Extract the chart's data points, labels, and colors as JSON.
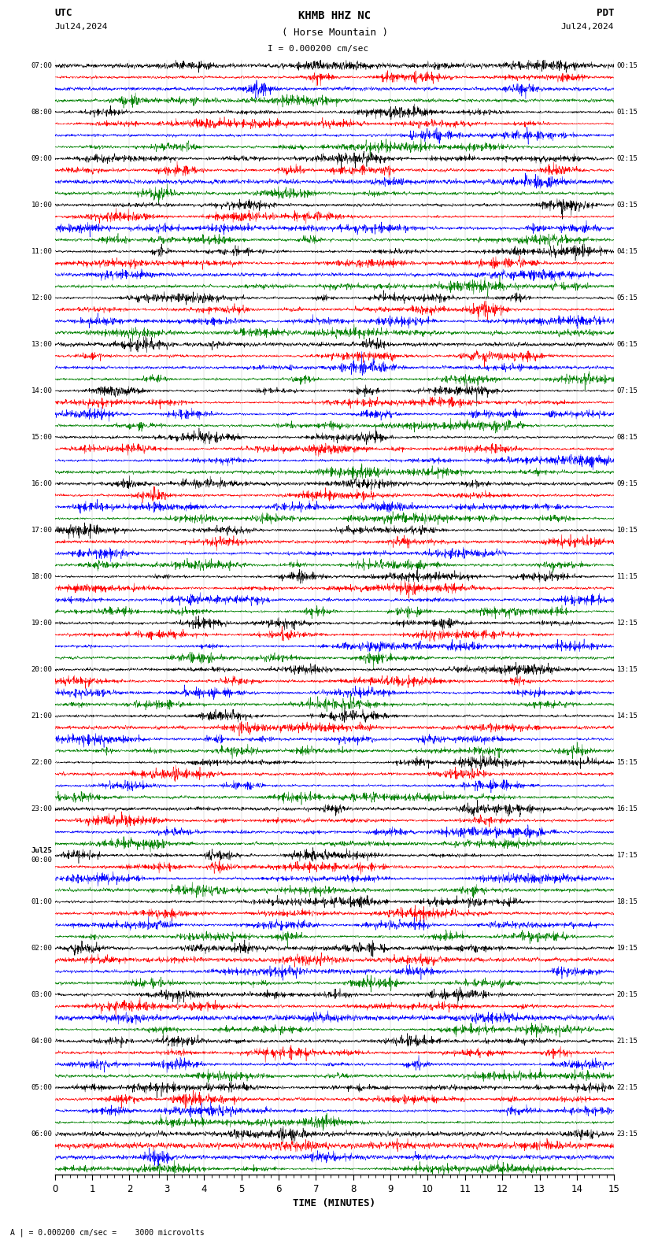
{
  "title_line1": "KHMB HHZ NC",
  "title_line2": "( Horse Mountain )",
  "scale_label": "I = 0.000200 cm/sec",
  "left_date": "Jul24,2024",
  "right_date": "Jul24,2024",
  "left_tz": "UTC",
  "right_tz": "PDT",
  "bottom_label": "TIME (MINUTES)",
  "bottom_note": "A | = 0.000200 cm/sec =    3000 microvolts",
  "xmin": 0,
  "xmax": 15,
  "xticks": [
    0,
    1,
    2,
    3,
    4,
    5,
    6,
    7,
    8,
    9,
    10,
    11,
    12,
    13,
    14,
    15
  ],
  "colors": [
    "black",
    "red",
    "blue",
    "green"
  ],
  "utc_rows": [
    "07:00",
    "08:00",
    "09:00",
    "10:00",
    "11:00",
    "12:00",
    "13:00",
    "14:00",
    "15:00",
    "16:00",
    "17:00",
    "18:00",
    "19:00",
    "20:00",
    "21:00",
    "22:00",
    "23:00",
    "Jul25\n00:00",
    "01:00",
    "02:00",
    "03:00",
    "04:00",
    "05:00",
    "06:00"
  ],
  "pdt_rows": [
    "00:15",
    "01:15",
    "02:15",
    "03:15",
    "04:15",
    "05:15",
    "06:15",
    "07:15",
    "08:15",
    "09:15",
    "10:15",
    "11:15",
    "12:15",
    "13:15",
    "14:15",
    "15:15",
    "16:15",
    "17:15",
    "18:15",
    "19:15",
    "20:15",
    "21:15",
    "22:15",
    "23:15"
  ],
  "fig_width": 8.5,
  "fig_height": 15.84,
  "dpi": 100,
  "bg_color": "white",
  "trace_amplitude": 0.38,
  "n_traces_per_hour": 4
}
